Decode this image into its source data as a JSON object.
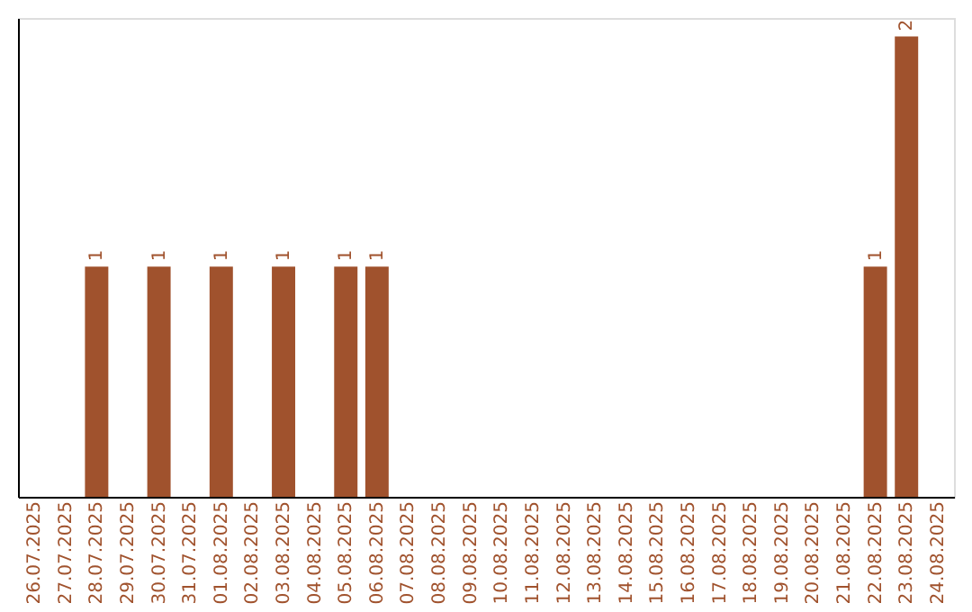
{
  "chart_data": {
    "type": "bar",
    "categories": [
      "26.07.2025",
      "27.07.2025",
      "28.07.2025",
      "29.07.2025",
      "30.07.2025",
      "31.07.2025",
      "01.08.2025",
      "02.08.2025",
      "03.08.2025",
      "04.08.2025",
      "05.08.2025",
      "06.08.2025",
      "07.08.2025",
      "08.08.2025",
      "09.08.2025",
      "10.08.2025",
      "11.08.2025",
      "12.08.2025",
      "13.08.2025",
      "14.08.2025",
      "15.08.2025",
      "16.08.2025",
      "17.08.2025",
      "18.08.2025",
      "19.08.2025",
      "20.08.2025",
      "21.08.2025",
      "22.08.2025",
      "23.08.2025",
      "24.08.2025"
    ],
    "values": [
      0,
      0,
      1,
      0,
      1,
      0,
      1,
      0,
      1,
      0,
      1,
      1,
      0,
      0,
      0,
      0,
      0,
      0,
      0,
      0,
      0,
      0,
      0,
      0,
      0,
      0,
      0,
      1,
      2,
      0
    ],
    "value_labels": [
      null,
      null,
      "1",
      null,
      "1",
      null,
      "1",
      null,
      "1",
      null,
      "1",
      "1",
      null,
      null,
      null,
      null,
      null,
      null,
      null,
      null,
      null,
      null,
      null,
      null,
      null,
      null,
      null,
      "1",
      "2",
      null
    ],
    "color": "#a0522d",
    "ylim": [
      0,
      2.08
    ],
    "tick_labels": "x",
    "grid": false
  }
}
